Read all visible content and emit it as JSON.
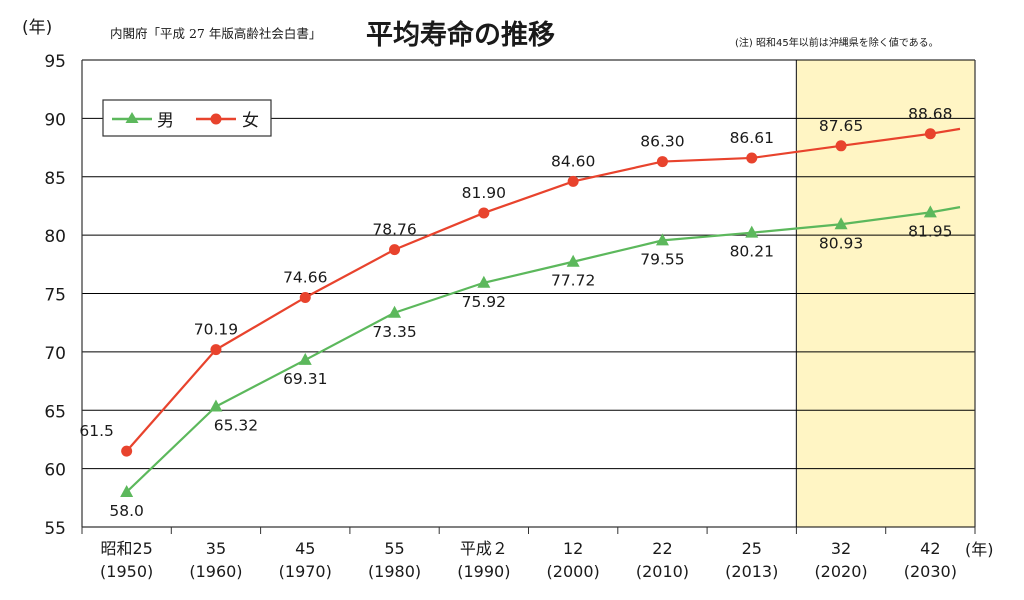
{
  "header": {
    "source": "内閣府「平成 27 年版高齢社会白書」",
    "note": "(注) 昭和45年以前は沖縄県を除く値である。"
  },
  "axis": {
    "y_unit": "(年)",
    "x_unit": "(年)"
  },
  "colors": {
    "male": "#5cb85c",
    "female": "#e8432d",
    "forecast_shade": "#fff5c4",
    "grid": "#000000",
    "label_male": "#2f4f8f",
    "label_female": "#1a1a1a"
  },
  "chart_data": {
    "type": "line",
    "title": "平均寿命の推移",
    "xlabel": "",
    "ylabel": "",
    "ylim": [
      55,
      95
    ],
    "yticks": [
      55,
      60,
      65,
      70,
      75,
      80,
      85,
      90,
      95
    ],
    "grid": true,
    "legend_position": "top-left",
    "categories": [
      {
        "era": "昭和25",
        "year": "(1950)"
      },
      {
        "era": "35",
        "year": "(1960)"
      },
      {
        "era": "45",
        "year": "(1970)"
      },
      {
        "era": "55",
        "year": "(1980)"
      },
      {
        "era": "平成２",
        "year": "(1990)"
      },
      {
        "era": "12",
        "year": "(2000)"
      },
      {
        "era": "22",
        "year": "(2010)"
      },
      {
        "era": "25",
        "year": "(2013)"
      },
      {
        "era": "32",
        "year": "(2020)"
      },
      {
        "era": "42",
        "year": "(2030)"
      }
    ],
    "forecast_from_index": 8,
    "series": [
      {
        "name": "男",
        "key": "male",
        "marker": "triangle",
        "values": [
          58.0,
          65.32,
          69.31,
          73.35,
          75.92,
          77.72,
          79.55,
          80.21,
          80.93,
          81.95
        ],
        "labels": [
          "58.0",
          "65.32",
          "69.31",
          "73.35",
          "75.92",
          "77.72",
          "79.55",
          "80.21",
          "80.93",
          "81.95"
        ],
        "label_pos": [
          "below",
          "below-right",
          "below",
          "below",
          "below",
          "below",
          "below",
          "below",
          "below",
          "below"
        ],
        "end_value": 82.4
      },
      {
        "name": "女",
        "key": "female",
        "marker": "circle",
        "values": [
          61.5,
          70.19,
          74.66,
          78.76,
          81.9,
          84.6,
          86.3,
          86.61,
          87.65,
          88.68
        ],
        "labels": [
          "61.5",
          "70.19",
          "74.66",
          "78.76",
          "81.90",
          "84.60",
          "86.30",
          "86.61",
          "87.65",
          "88.68"
        ],
        "label_pos": [
          "above-left",
          "above",
          "above",
          "above",
          "above",
          "above",
          "above",
          "above",
          "above",
          "above"
        ],
        "end_value": 89.1
      }
    ]
  }
}
